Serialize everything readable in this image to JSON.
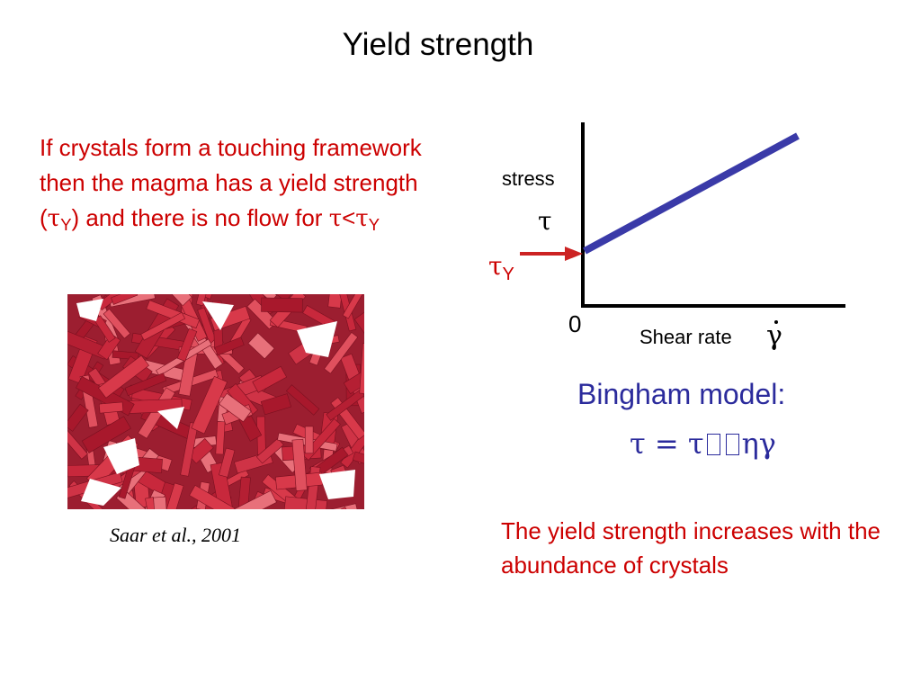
{
  "title": "Yield strength",
  "intro": {
    "part1": "If crystals form a touching framework then the magma has a yield strength (",
    "tau1": "τ",
    "sub1": "Y",
    "part2": ") and there is no flow for ",
    "tau2": "τ",
    "lt": "<",
    "tau3": "τ",
    "sub3": "Y"
  },
  "citation": "Saar et al., 2001",
  "graph": {
    "ylabel": "stress",
    "y_symbol": "τ",
    "yield_symbol": "τ",
    "yield_sub": "Y",
    "origin": "0",
    "xlabel": "Shear rate",
    "x_symbol": "γ"
  },
  "bingham": {
    "label": "Bingham model:",
    "lhs": "τ",
    "eq": " = ",
    "tau0": "τ",
    "eta_gamma": "ηγ"
  },
  "conclusion": "The yield strength increases with the abundance of crystals",
  "colors": {
    "red": "#cc0000",
    "blue": "#2b2b9c",
    "line": "#3a3aa8",
    "crystal": "#c8283c"
  }
}
